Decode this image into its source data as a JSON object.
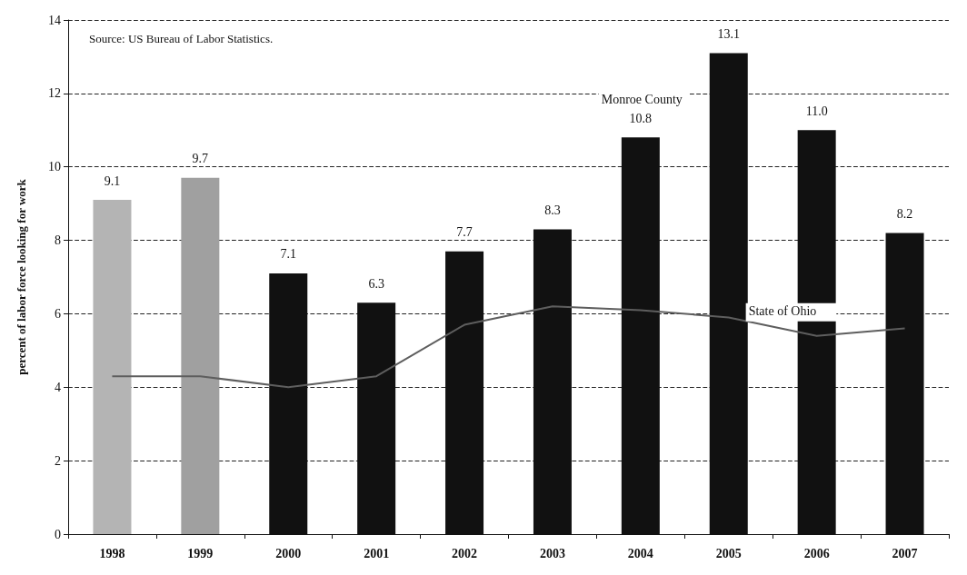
{
  "chart_data": {
    "type": "bar",
    "ylabel": "percent of labor force looking for work",
    "categories": [
      "1998",
      "1999",
      "2000",
      "2001",
      "2002",
      "2003",
      "2004",
      "2005",
      "2006",
      "2007"
    ],
    "series": [
      {
        "name": "Monroe County",
        "colors": [
          "#b4b4b4",
          "#a0a0a0",
          "#111111",
          "#111111",
          "#111111",
          "#111111",
          "#111111",
          "#111111",
          "#111111",
          "#111111"
        ],
        "values": [
          9.1,
          9.7,
          7.1,
          6.3,
          7.7,
          8.3,
          10.8,
          13.1,
          11.0,
          8.2
        ],
        "value_labels": [
          "9.1",
          "9.7",
          "7.1",
          "6.3",
          "7.7",
          "8.3",
          "10.8",
          "13.1",
          "11.0",
          "8.2"
        ]
      },
      {
        "name": "State of Ohio",
        "type": "line",
        "color": "#5e5e5e",
        "values": [
          4.3,
          4.3,
          4.0,
          4.3,
          5.7,
          6.2,
          6.1,
          5.9,
          5.4,
          5.6
        ]
      }
    ],
    "ylim": [
      0,
      14
    ],
    "yticks": [
      0,
      2,
      4,
      6,
      8,
      10,
      12,
      14
    ],
    "grid": "y",
    "line_style": "solid",
    "marker": "none",
    "legend": false,
    "annotations": [
      "Source: US Bureau of Labor Statistics."
    ]
  }
}
